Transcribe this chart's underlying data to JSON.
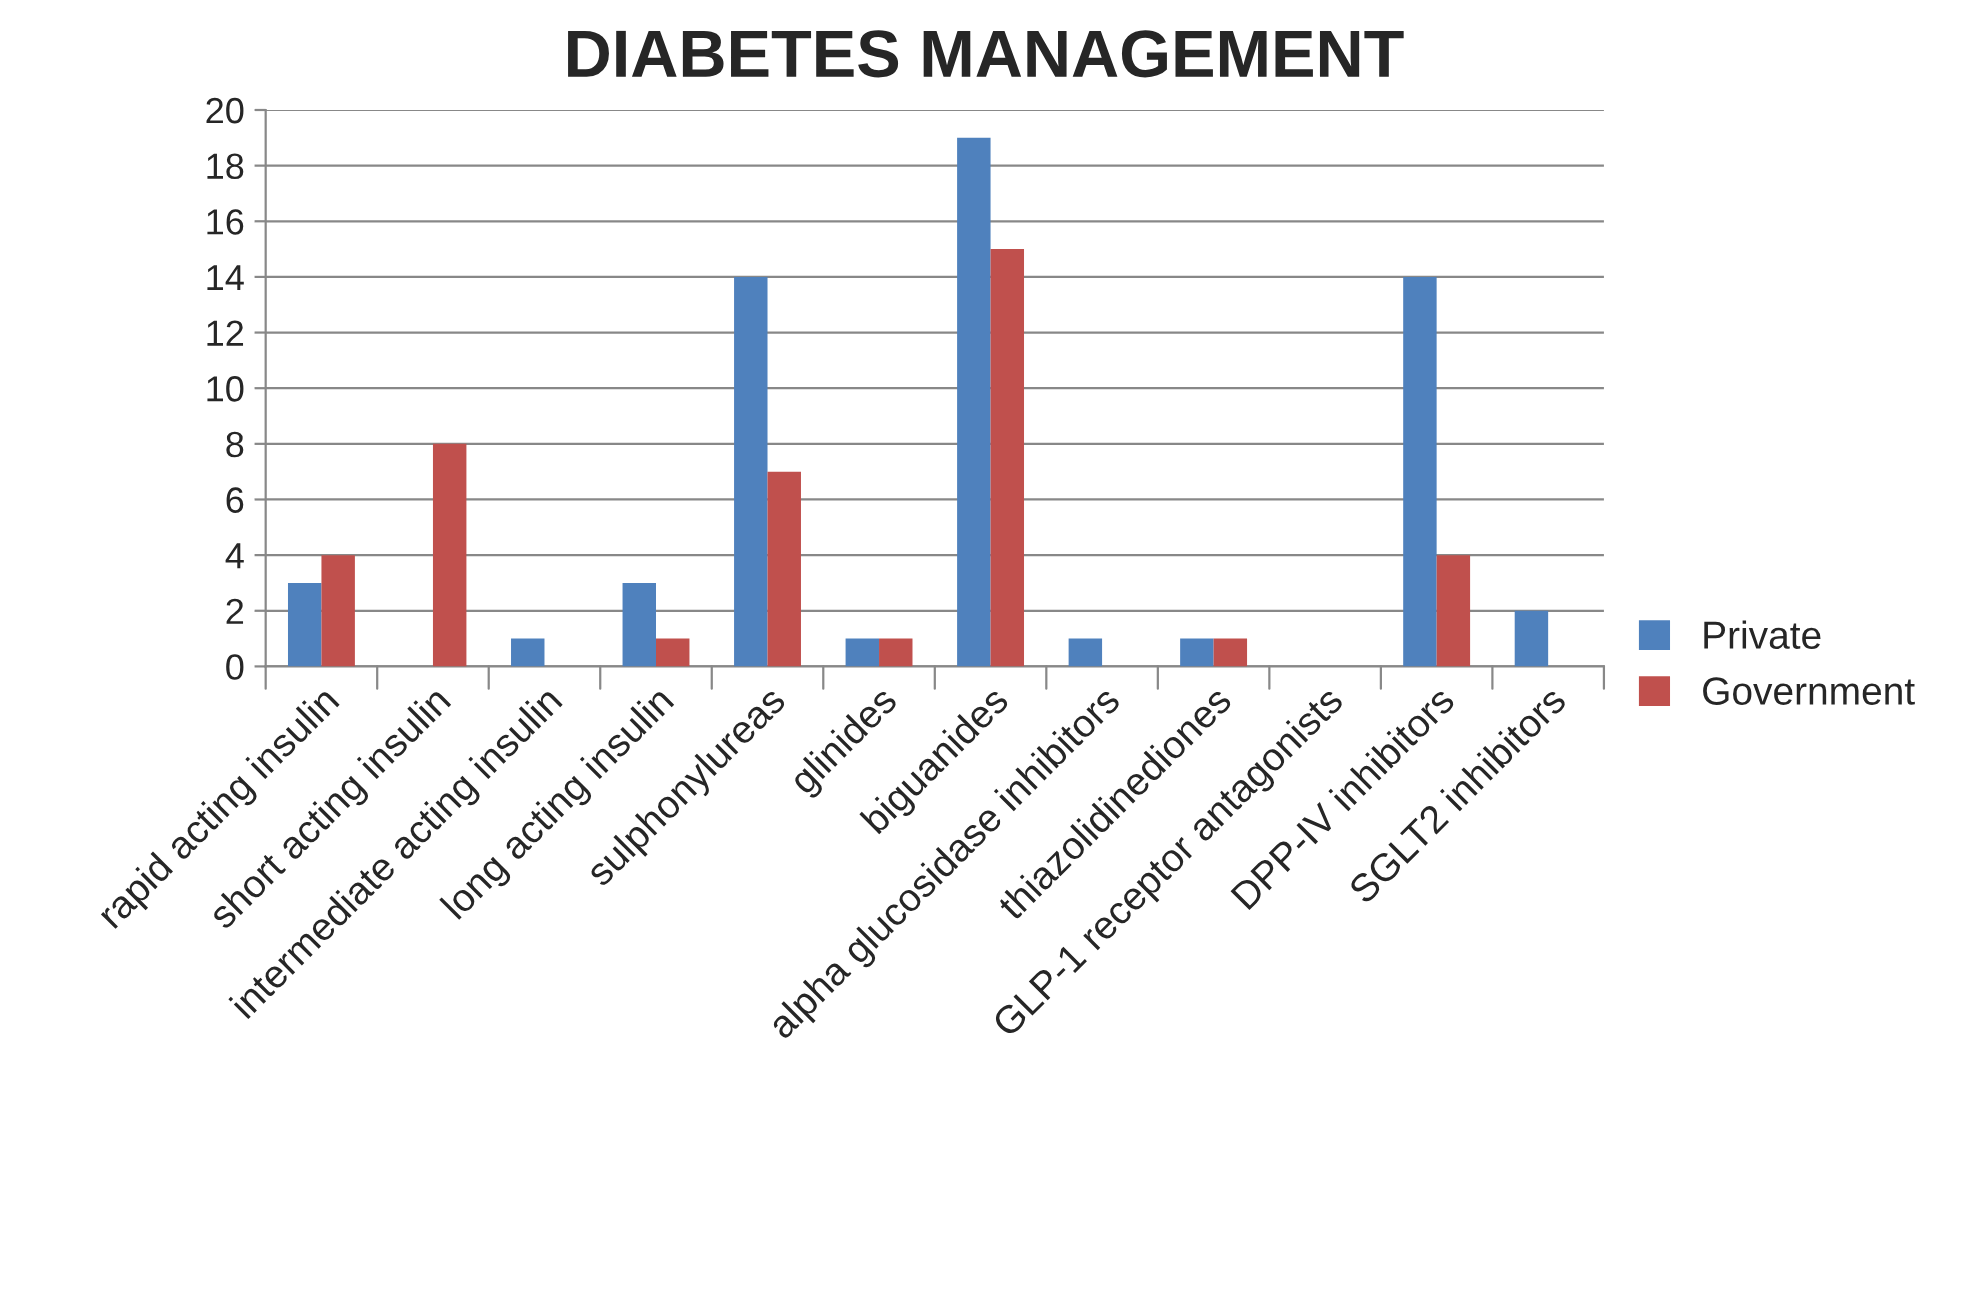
{
  "chart_data": {
    "type": "bar",
    "title": "DIABETES MANAGEMENT",
    "categories": [
      "rapid acting insulin",
      "short acting insulin",
      "intermediate acting insulin",
      "long acting insulin",
      "sulphonylureas",
      "glinides",
      "biguanides",
      "alpha glucosidase inhibitors",
      "thiazolidinediones",
      "GLP-1 receptor antagonists",
      "DPP-IV inhibitors",
      "SGLT2 inhibitors"
    ],
    "series": [
      {
        "name": "Private",
        "color": "#4f81bd",
        "values": [
          3,
          null,
          1,
          3,
          14,
          1,
          19,
          1,
          1,
          null,
          14,
          2
        ]
      },
      {
        "name": "Government",
        "color": "#c0504d",
        "values": [
          4,
          8,
          null,
          1,
          7,
          1,
          15,
          null,
          1,
          null,
          4,
          null
        ]
      }
    ],
    "ylim": [
      0,
      20
    ],
    "yticks": [
      0,
      2,
      4,
      6,
      8,
      10,
      12,
      14,
      16,
      18,
      20
    ],
    "grid": "y",
    "legend": "right"
  }
}
